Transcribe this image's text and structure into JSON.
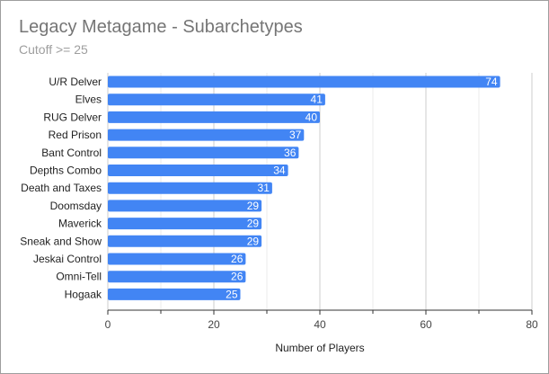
{
  "chart_data": {
    "type": "bar",
    "orientation": "horizontal",
    "title": "Legacy Metagame - Subarchetypes",
    "subtitle": "Cutoff >= 25",
    "xlabel": "Number of Players",
    "ylabel": "",
    "categories": [
      "U/R Delver",
      "Elves",
      "RUG Delver",
      "Red Prison",
      "Bant Control",
      "Depths Combo",
      "Death and Taxes",
      "Doomsday",
      "Maverick",
      "Sneak and Show",
      "Jeskai Control",
      "Omni-Tell",
      "Hogaak"
    ],
    "values": [
      74,
      41,
      40,
      37,
      36,
      34,
      31,
      29,
      29,
      29,
      26,
      26,
      25
    ],
    "xlim": [
      0,
      80
    ],
    "xticks": [
      "0",
      "20",
      "40",
      "60",
      "80"
    ],
    "grid": true,
    "legend": "none",
    "bar_color": "#4285f4",
    "value_label_color": "#ffffff"
  }
}
